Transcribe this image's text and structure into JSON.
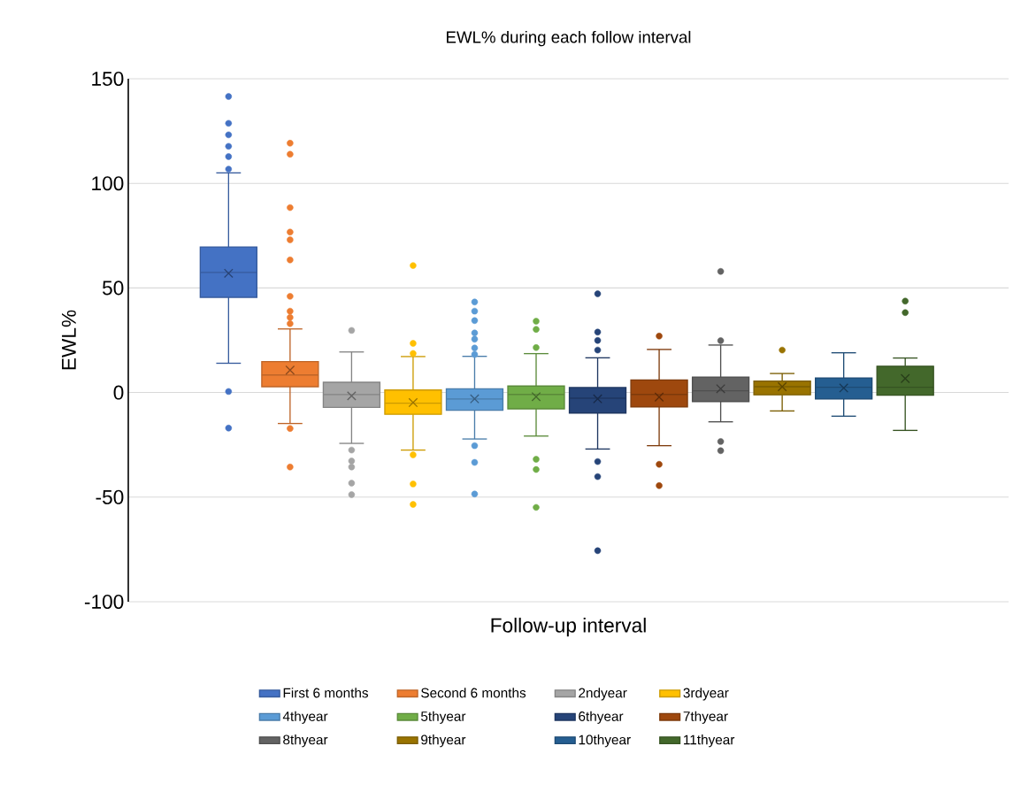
{
  "chart_data": {
    "type": "box",
    "title": "EWL% during each follow interval",
    "xlabel": "Follow-up interval",
    "ylabel": "EWL%",
    "categories": [
      null
    ],
    "ylim": [
      -100,
      150
    ],
    "yticks": [
      -100,
      -50,
      0,
      50,
      100,
      150
    ],
    "grid": "y",
    "legend": "bottom",
    "series": [
      {
        "name": "First 6 months",
        "color": "#4472c4",
        "boxes": [
          {
            "low": 14,
            "q1": 45.5,
            "median": 57.4,
            "q3": 69.6,
            "high": 105,
            "mean": 57,
            "outliers": [
              141.5,
              128.7,
              123.2,
              117.7,
              112.8,
              106.8,
              0.5,
              -17
            ]
          }
        ]
      },
      {
        "name": "Second 6 months",
        "color": "#ed7d31",
        "boxes": [
          {
            "low": -14.8,
            "q1": 2.8,
            "median": 8.4,
            "q3": 14.8,
            "high": 30.4,
            "mean": 10.7,
            "outliers": [
              119.2,
              113.9,
              88.4,
              76.7,
              73,
              63.4,
              46,
              38.9,
              35.9,
              32.9,
              -17.2,
              -35.6
            ]
          }
        ]
      },
      {
        "name": "2ndyear",
        "color": "#a5a5a5",
        "boxes": [
          {
            "low": -24.3,
            "q1": -7.1,
            "median": -1,
            "q3": 4.9,
            "high": 19.4,
            "mean": -1.6,
            "outliers": [
              29.7,
              -27.5,
              -32.7,
              -35.6,
              -43.3,
              -48.8
            ]
          }
        ]
      },
      {
        "name": "3rdyear",
        "color": "#ffc000",
        "boxes": [
          {
            "low": -27.5,
            "q1": -10.4,
            "median": -5.1,
            "q3": 1.2,
            "high": 17.2,
            "mean": -4.8,
            "outliers": [
              60.7,
              23.5,
              18.7,
              -29.8,
              -43.7,
              -53.5
            ]
          }
        ]
      },
      {
        "name": "4thyear",
        "color": "#5b9bd5",
        "boxes": [
          {
            "low": -22.2,
            "q1": -8.5,
            "median": -3.1,
            "q3": 1.8,
            "high": 17.3,
            "mean": -3,
            "outliers": [
              43.3,
              38.9,
              34.4,
              28.5,
              25.5,
              21.3,
              18.2,
              -25.4,
              -33.4,
              -48.5
            ]
          }
        ]
      },
      {
        "name": "5thyear",
        "color": "#70ad47",
        "boxes": [
          {
            "low": -20.8,
            "q1": -7.8,
            "median": -0.9,
            "q3": 3.1,
            "high": 18.6,
            "mean": -2,
            "outliers": [
              34.1,
              30.2,
              21.5,
              -31.9,
              -36.8,
              -54.9
            ]
          }
        ]
      },
      {
        "name": "6thyear",
        "color": "#264478",
        "boxes": [
          {
            "low": -27,
            "q1": -9.8,
            "median": -2.7,
            "q3": 2.4,
            "high": 16.6,
            "mean": -3,
            "outliers": [
              47.2,
              28.9,
              24.9,
              20.3,
              -33,
              -40.2,
              -75.6
            ]
          }
        ]
      },
      {
        "name": "7thyear",
        "color": "#9e480e",
        "boxes": [
          {
            "low": -25.4,
            "q1": -6.9,
            "median": -0.9,
            "q3": 6,
            "high": 20.6,
            "mean": -2.2,
            "outliers": [
              27,
              -34.3,
              -44.5
            ]
          }
        ]
      },
      {
        "name": "8thyear",
        "color": "#636363",
        "boxes": [
          {
            "low": -14,
            "q1": -4.3,
            "median": 0.8,
            "q3": 7.4,
            "high": 22.7,
            "mean": 1.8,
            "outliers": [
              57.9,
              24.8,
              -23.4,
              -27.8
            ]
          }
        ]
      },
      {
        "name": "9thyear",
        "color": "#997300",
        "boxes": [
          {
            "low": -8.8,
            "q1": -1.1,
            "median": 2.8,
            "q3": 5.5,
            "high": 9.1,
            "mean": 2.8,
            "outliers": [
              20.3
            ]
          }
        ]
      },
      {
        "name": "10thyear",
        "color": "#255e91",
        "boxes": [
          {
            "low": -11.3,
            "q1": -3.1,
            "median": 2.5,
            "q3": 7,
            "high": 19,
            "mean": 2.2
          }
        ]
      },
      {
        "name": "11thyear",
        "color": "#43682b",
        "boxes": [
          {
            "low": -18.1,
            "q1": -1.3,
            "median": 2.5,
            "q3": 12.6,
            "high": 16.5,
            "mean": 6.7,
            "outliers": [
              43.7,
              38.2
            ]
          }
        ]
      }
    ]
  }
}
